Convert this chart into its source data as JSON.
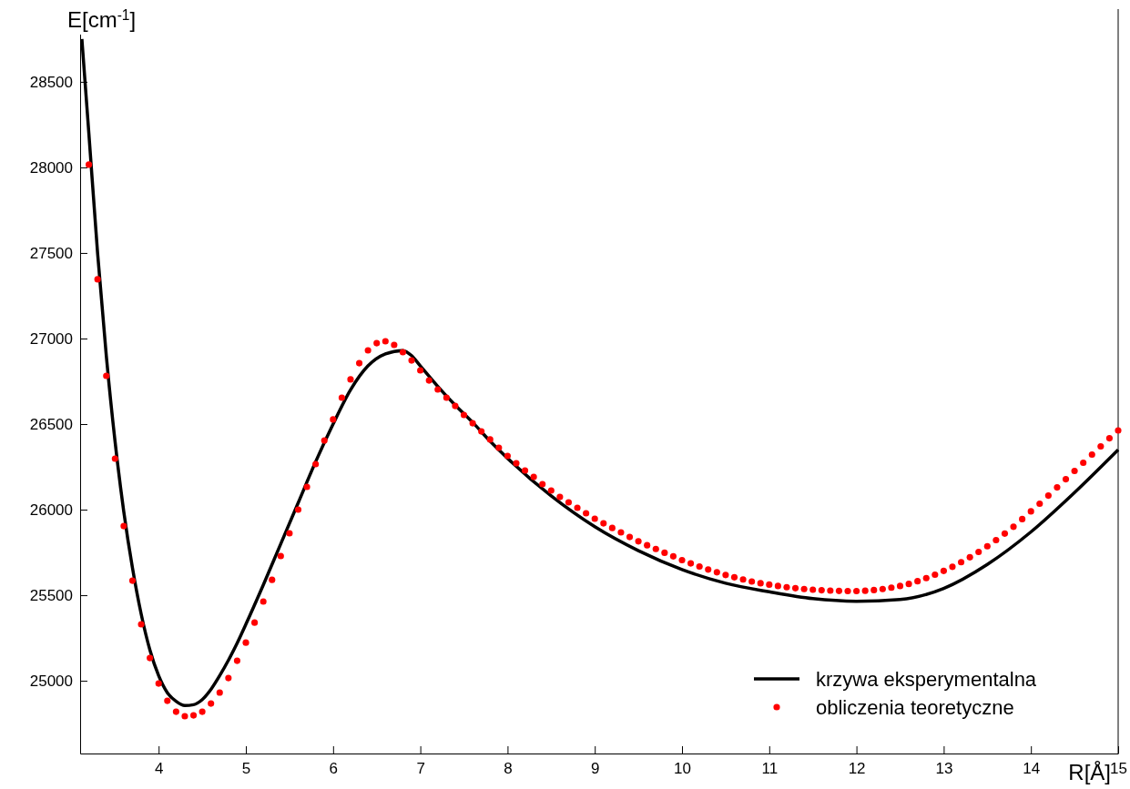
{
  "chart_data": {
    "type": "line",
    "xlabel": "R[Å]",
    "ylabel": "E[cm$^{-1}$]",
    "xlim": [
      3.1,
      15
    ],
    "xticks": [
      4,
      5,
      6,
      7,
      8,
      9,
      10,
      11,
      12,
      13,
      14,
      15
    ],
    "ylim": [
      24575,
      28925
    ],
    "yticks": [
      25000,
      25500,
      26000,
      26500,
      27000,
      27500,
      28000,
      28500
    ],
    "grid": false,
    "legend": "bottom right",
    "series": [
      {
        "name": "krzywa eksperymentalna",
        "color": "#000000",
        "line_style": "solid",
        "x": [
          3.12,
          3.2,
          3.3,
          3.4,
          3.5,
          3.6,
          3.7,
          3.8,
          3.9,
          4.0,
          4.1,
          4.2,
          4.3,
          4.4,
          4.5,
          4.6,
          4.7,
          4.8,
          4.9,
          5.0,
          5.2,
          5.4,
          5.6,
          5.8,
          6.0,
          6.2,
          6.4,
          6.6,
          6.8,
          6.9,
          7.0,
          7.2,
          7.4,
          7.6,
          7.8,
          8.0,
          8.5,
          9.0,
          9.5,
          10.0,
          10.5,
          11.0,
          11.5,
          12.0,
          12.5,
          13.0,
          13.5,
          14.0,
          14.5,
          15.0
        ],
        "values": [
          28750,
          28200,
          27500,
          26900,
          26400,
          25990,
          25660,
          25390,
          25180,
          25030,
          24930,
          24880,
          24855,
          24860,
          24890,
          24950,
          25030,
          25120,
          25220,
          25330,
          25560,
          25800,
          26040,
          26280,
          26500,
          26700,
          26840,
          26910,
          26930,
          26900,
          26840,
          26720,
          26610,
          26510,
          26400,
          26300,
          26080,
          25900,
          25760,
          25650,
          25570,
          25520,
          25480,
          25465,
          25475,
          25540,
          25680,
          25870,
          26100,
          26350
        ]
      },
      {
        "name": "obliczenia teoretyczne",
        "type": "scatter",
        "color": "#ff0000",
        "marker": "circle",
        "x": [
          3.2,
          3.3,
          3.4,
          3.5,
          3.6,
          3.7,
          3.8,
          3.9,
          4.0,
          4.1,
          4.2,
          4.3,
          4.4,
          4.5,
          4.6,
          4.7,
          4.8,
          4.9,
          5.0,
          5.1,
          5.2,
          5.3,
          5.4,
          5.5,
          5.6,
          5.7,
          5.8,
          5.9,
          6.0,
          6.1,
          6.2,
          6.3,
          6.4,
          6.5,
          6.6,
          6.7,
          6.8,
          6.9,
          7.0,
          7.1,
          7.2,
          7.3,
          7.4,
          7.5,
          7.6,
          7.7,
          7.8,
          7.9,
          8.0,
          8.1,
          8.2,
          8.3,
          8.4,
          8.5,
          8.6,
          8.7,
          8.8,
          8.9,
          9.0,
          9.1,
          9.2,
          9.3,
          9.4,
          9.5,
          9.6,
          9.7,
          9.8,
          9.9,
          10.0,
          10.1,
          10.2,
          10.3,
          10.4,
          10.5,
          10.6,
          10.7,
          10.8,
          10.9,
          11.0,
          11.1,
          11.2,
          11.3,
          11.4,
          11.5,
          11.6,
          11.7,
          11.8,
          11.9,
          12.0,
          12.1,
          12.2,
          12.3,
          12.4,
          12.5,
          12.6,
          12.7,
          12.8,
          12.9,
          13.0,
          13.1,
          13.2,
          13.3,
          13.4,
          13.5,
          13.6,
          13.7,
          13.8,
          13.9,
          14.0,
          14.1,
          14.2,
          14.3,
          14.4,
          14.5,
          14.6,
          14.7,
          14.8,
          14.9,
          15.0
        ],
        "values": [
          28016,
          27346,
          26782,
          26298,
          25904,
          25585,
          25330,
          25133,
          24984,
          24883,
          24819,
          24793,
          24798,
          24819,
          24867,
          24931,
          25016,
          25117,
          25223,
          25340,
          25463,
          25590,
          25729,
          25862,
          26000,
          26133,
          26266,
          26404,
          26527,
          26654,
          26761,
          26856,
          26931,
          26973,
          26984,
          26963,
          26920,
          26872,
          26814,
          26755,
          26702,
          26654,
          26606,
          26553,
          26505,
          26457,
          26410,
          26362,
          26314,
          26271,
          26229,
          26191,
          26149,
          26112,
          26074,
          26043,
          26011,
          25979,
          25947,
          25920,
          25893,
          25867,
          25840,
          25815,
          25792,
          25770,
          25748,
          25727,
          25705,
          25686,
          25668,
          25650,
          25634,
          25618,
          25605,
          25592,
          25580,
          25570,
          25562,
          25554,
          25547,
          25541,
          25536,
          25532,
          25529,
          25527,
          25525,
          25524,
          25524,
          25526,
          25530,
          25536,
          25544,
          25554,
          25566,
          25582,
          25600,
          25620,
          25642,
          25666,
          25693,
          25722,
          25753,
          25786,
          25822,
          25860,
          25900,
          25945,
          25990,
          26035,
          26082,
          26130,
          26178,
          26226,
          26274,
          26322,
          26370,
          26417,
          26463
        ]
      }
    ]
  }
}
